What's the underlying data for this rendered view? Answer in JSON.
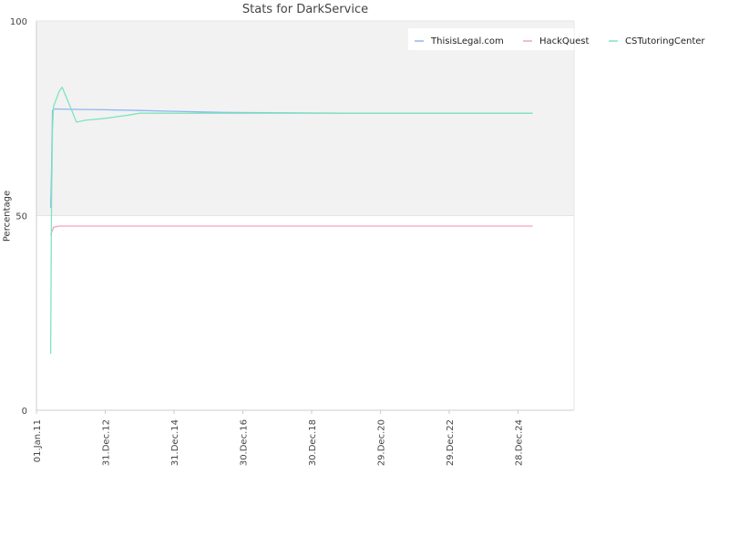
{
  "chart_data": {
    "type": "line",
    "title": "Stats for DarkService",
    "xlabel": "",
    "ylabel": "Percentage",
    "ylim": [
      0,
      100
    ],
    "xlim": [
      "2011-01-01",
      "2026-08-15"
    ],
    "y_ticks": [
      0,
      50,
      100
    ],
    "x_ticks": [
      "01.Jan.11",
      "31.Dec.12",
      "31.Dec.14",
      "30.Dec.16",
      "30.Dec.18",
      "29.Dec.20",
      "29.Dec.22",
      "28.Dec.24"
    ],
    "x_tick_dates": [
      "2011-01-01",
      "2012-12-31",
      "2014-12-31",
      "2016-12-30",
      "2018-12-30",
      "2020-12-29",
      "2022-12-29",
      "2024-12-28"
    ],
    "upper_band": [
      50,
      100
    ],
    "grid": true,
    "legend_position": "top-right",
    "colors": {
      "ThisisLegal.com": "#8ab8f0",
      "HackQuest": "#f2a2bc",
      "CSTutoringCenter": "#80e4bc",
      "band": "#f2f2f2",
      "axis": "#cccccc"
    },
    "series": [
      {
        "name": "ThisisLegal.com",
        "x": [
          "2011-06-01",
          "2011-06-10",
          "2011-06-20",
          "2011-07-10",
          "2012-01-01",
          "2013-01-01",
          "2014-01-01",
          "2015-01-01",
          "2016-06-01",
          "2020-01-01",
          "2025-06-01"
        ],
        "y": [
          52,
          61,
          77,
          77.4,
          77.3,
          77.2,
          77,
          76.8,
          76.5,
          76.3,
          76.3
        ]
      },
      {
        "name": "HackQuest",
        "x": [
          "2011-06-01",
          "2011-07-01",
          "2011-09-01",
          "2012-06-01",
          "2025-06-01"
        ],
        "y": [
          45,
          47,
          47.3,
          47.3,
          47.3
        ]
      },
      {
        "name": "CSTutoringCenter",
        "x": [
          "2011-06-01",
          "2011-06-10",
          "2011-06-20",
          "2011-07-01",
          "2011-08-01",
          "2011-09-01",
          "2011-10-01",
          "2012-03-01",
          "2012-06-01",
          "2013-01-01",
          "2013-09-01",
          "2014-01-01",
          "2016-06-01",
          "2025-06-01"
        ],
        "y": [
          14.5,
          52,
          72,
          78,
          80,
          82,
          83,
          74,
          74.5,
          75,
          75.8,
          76.3,
          76.3,
          76.3
        ]
      }
    ]
  }
}
